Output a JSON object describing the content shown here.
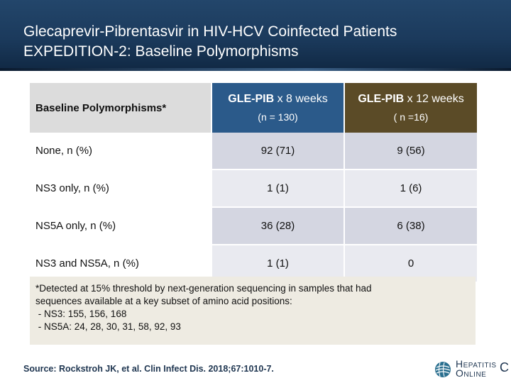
{
  "slide": {
    "title_line1": "Glecaprevir-Pibrentasvir in HIV-HCV Coinfected Patients",
    "title_line2": "EXPEDITION-2: Baseline Polymorphisms"
  },
  "table": {
    "header": {
      "label": "Baseline Polymorphisms*",
      "col1_bold": "GLE-PIB",
      "col1_rest": " x 8 weeks",
      "col1_sub": "(n = 130)",
      "col2_bold": "GLE-PIB",
      "col2_rest": " x 12 weeks",
      "col2_sub": "( n =16)"
    },
    "rows": [
      {
        "label": "None, n (%)",
        "v1": "92 (71)",
        "v2": "9 (56)"
      },
      {
        "label": "NS3 only, n (%)",
        "v1": "1 (1)",
        "v2": "1 (6)"
      },
      {
        "label": "NS5A only, n (%)",
        "v1": "36 (28)",
        "v2": "6 (38)"
      },
      {
        "label": "NS3 and NS5A, n (%)",
        "v1": "1 (1)",
        "v2": "0"
      }
    ]
  },
  "footnote": {
    "line1": "*Detected at 15% threshold by next-generation sequencing in samples that had",
    "line2": "sequences available at a key subset of amino acid positions:",
    "line3": " - NS3: 155, 156, 168",
    "line4": " - NS5A: 24, 28, 30, 31, 58, 92, 93"
  },
  "source": "Source: Rockstroh JK, et al. Clin Infect Dis. 2018;67:1010-7.",
  "logo": {
    "line1": "Hepatitis",
    "line2": "Online",
    "letter": "C",
    "icon": "globe-icon"
  }
}
